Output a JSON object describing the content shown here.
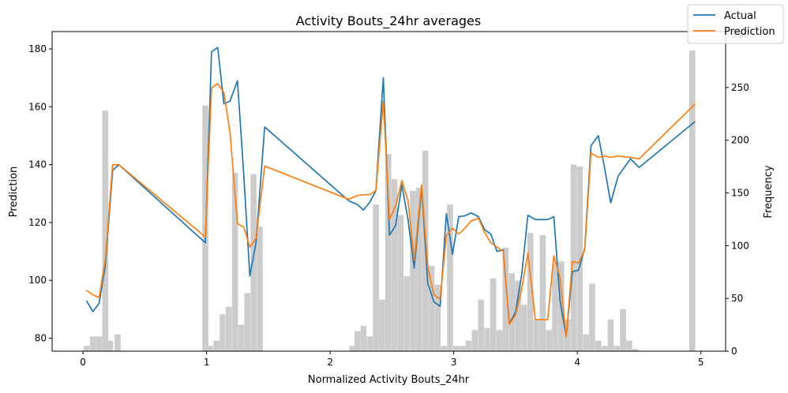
{
  "chart_data": {
    "type": "line",
    "title": "Activity Bouts_24hr averages",
    "xlabel": "Normalized Activity Bouts_24hr",
    "ylabel": "Prediction",
    "y2label": "Frequency",
    "xlim": [
      -0.25,
      5.2
    ],
    "ylim": [
      75.5,
      186
    ],
    "y2lim": [
      0,
      303
    ],
    "xticks": [
      "0",
      "1",
      "2",
      "3",
      "4",
      "5"
    ],
    "yticks": [
      "80",
      "100",
      "120",
      "140",
      "160",
      "180"
    ],
    "y2ticks": [
      "0",
      "50",
      "100",
      "150",
      "200",
      "250",
      "300"
    ],
    "legend": {
      "position": "top-right",
      "entries": [
        "Actual",
        "Prediction"
      ]
    },
    "colors": {
      "actual": "#1f77b4",
      "prediction": "#ff7f0e",
      "histogram": "#cccccc"
    },
    "series": [
      {
        "name": "Actual",
        "x": [
          0.03,
          0.08,
          0.13,
          0.18,
          0.24,
          0.29,
          0.99,
          1.04,
          1.09,
          1.14,
          1.19,
          1.25,
          1.3,
          1.35,
          1.4,
          1.47,
          2.15,
          2.22,
          2.27,
          2.32,
          2.37,
          2.43,
          2.48,
          2.53,
          2.58,
          2.63,
          2.68,
          2.74,
          2.79,
          2.84,
          2.89,
          2.94,
          2.99,
          3.04,
          3.09,
          3.14,
          3.2,
          3.25,
          3.3,
          3.35,
          3.4,
          3.45,
          3.5,
          3.55,
          3.6,
          3.66,
          3.71,
          3.76,
          3.81,
          3.86,
          3.91,
          3.96,
          4.01,
          4.06,
          4.11,
          4.17,
          4.22,
          4.27,
          4.33,
          4.43,
          4.5,
          4.95
        ],
        "y": [
          92.8,
          89.2,
          92.0,
          105.0,
          138.0,
          140.0,
          113.0,
          179.0,
          180.5,
          161.0,
          162.0,
          169.0,
          137.0,
          101.5,
          113.0,
          153.0,
          127.5,
          126.2,
          124.3,
          127.0,
          131.0,
          170.0,
          115.6,
          119.0,
          133.0,
          121.0,
          104.2,
          132.0,
          99.0,
          92.5,
          91.0,
          123.0,
          109.0,
          122.0,
          122.3,
          123.3,
          122.0,
          117.5,
          116.0,
          110.0,
          110.5,
          85.0,
          89.0,
          102.0,
          122.5,
          121.0,
          121.0,
          121.0,
          122.0,
          93.0,
          80.5,
          103.0,
          103.5,
          111.0,
          146.5,
          150.0,
          139.0,
          126.8,
          136.0,
          142.0,
          139.0,
          154.8
        ]
      },
      {
        "name": "Prediction",
        "x": [
          0.03,
          0.08,
          0.13,
          0.18,
          0.24,
          0.29,
          0.99,
          1.04,
          1.09,
          1.14,
          1.19,
          1.25,
          1.3,
          1.35,
          1.4,
          1.47,
          2.15,
          2.22,
          2.27,
          2.32,
          2.37,
          2.43,
          2.48,
          2.53,
          2.58,
          2.63,
          2.68,
          2.74,
          2.79,
          2.84,
          2.89,
          2.94,
          2.99,
          3.04,
          3.09,
          3.14,
          3.2,
          3.25,
          3.3,
          3.35,
          3.4,
          3.45,
          3.5,
          3.55,
          3.6,
          3.66,
          3.71,
          3.76,
          3.81,
          3.86,
          3.91,
          3.96,
          4.01,
          4.06,
          4.11,
          4.17,
          4.22,
          4.27,
          4.33,
          4.43,
          4.5,
          4.95
        ],
        "y": [
          96.5,
          95.0,
          94.0,
          107.0,
          140.0,
          140.0,
          115.0,
          166.5,
          168.0,
          165.0,
          151.0,
          119.5,
          118.5,
          111.5,
          114.5,
          139.5,
          128.0,
          129.3,
          129.6,
          129.6,
          131.0,
          162.0,
          121.0,
          125.8,
          134.5,
          127.5,
          107.0,
          133.0,
          104.5,
          95.0,
          93.5,
          115.5,
          118.0,
          116.0,
          118.0,
          120.5,
          121.5,
          116.5,
          113.0,
          111.5,
          110.0,
          84.8,
          88.0,
          97.0,
          109.5,
          86.5,
          86.4,
          86.4,
          108.5,
          101.0,
          80.5,
          106.5,
          106.0,
          110.5,
          144.0,
          142.5,
          143.0,
          142.5,
          143.0,
          142.5,
          142.0,
          160.8
        ]
      }
    ],
    "histogram": {
      "bin_width": 0.0486,
      "bin_centers": [
        0.03,
        0.08,
        0.13,
        0.18,
        0.22,
        0.28,
        0.99,
        1.03,
        1.08,
        1.13,
        1.18,
        1.23,
        1.28,
        1.33,
        1.38,
        1.43,
        2.18,
        2.22,
        2.27,
        2.32,
        2.37,
        2.42,
        2.47,
        2.52,
        2.57,
        2.62,
        2.67,
        2.72,
        2.77,
        2.82,
        2.87,
        2.92,
        2.97,
        3.02,
        3.07,
        3.12,
        3.17,
        3.22,
        3.27,
        3.32,
        3.37,
        3.42,
        3.47,
        3.52,
        3.57,
        3.62,
        3.67,
        3.72,
        3.77,
        3.82,
        3.87,
        3.92,
        3.97,
        4.02,
        4.07,
        4.12,
        4.17,
        4.22,
        4.27,
        4.32,
        4.37,
        4.42,
        4.47,
        4.93
      ],
      "counts": [
        5,
        14,
        14,
        228,
        10,
        16,
        233,
        5,
        10,
        35,
        42,
        169,
        25,
        55,
        168,
        118,
        5,
        19,
        24,
        14,
        139,
        49,
        187,
        163,
        129,
        71,
        152,
        155,
        190,
        81,
        63,
        5,
        139,
        5,
        5,
        10,
        20,
        49,
        22,
        69,
        20,
        98,
        74,
        67,
        44,
        112,
        30,
        110,
        20,
        84,
        85,
        30,
        177,
        175,
        16,
        64,
        10,
        5,
        30,
        5,
        40,
        10,
        2,
        285
      ]
    }
  }
}
